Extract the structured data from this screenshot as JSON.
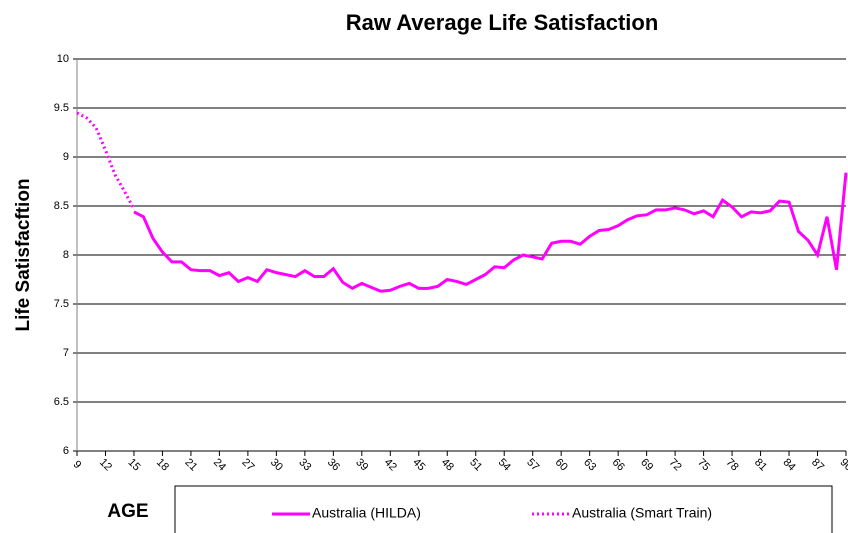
{
  "chart_data": {
    "type": "line",
    "title": "Raw Average Life Satisfaction",
    "xlabel": "AGE",
    "ylabel": "Life Satisfacftion",
    "x": [
      9,
      10,
      11,
      12,
      13,
      14,
      15,
      16,
      17,
      18,
      19,
      20,
      21,
      22,
      23,
      24,
      25,
      26,
      27,
      28,
      29,
      30,
      31,
      32,
      33,
      34,
      35,
      36,
      37,
      38,
      39,
      40,
      41,
      42,
      43,
      44,
      45,
      46,
      47,
      48,
      49,
      50,
      51,
      52,
      53,
      54,
      55,
      56,
      57,
      58,
      59,
      60,
      61,
      62,
      63,
      64,
      65,
      66,
      67,
      68,
      69,
      70,
      71,
      72,
      73,
      74,
      75,
      76,
      77,
      78,
      79,
      80,
      81,
      82,
      83,
      84,
      85,
      86,
      87,
      88,
      89,
      90
    ],
    "series": [
      {
        "name": "Australia (HILDA)",
        "color": "#ff00ff",
        "dash": "solid",
        "values": [
          null,
          null,
          null,
          null,
          null,
          null,
          8.44,
          8.39,
          8.17,
          8.03,
          7.93,
          7.93,
          7.85,
          7.84,
          7.84,
          7.79,
          7.82,
          7.73,
          7.77,
          7.73,
          7.85,
          7.82,
          7.8,
          7.78,
          7.84,
          7.78,
          7.78,
          7.86,
          7.72,
          7.66,
          7.71,
          7.67,
          7.63,
          7.64,
          7.68,
          7.71,
          7.66,
          7.66,
          7.68,
          7.75,
          7.73,
          7.7,
          7.75,
          7.8,
          7.88,
          7.87,
          7.95,
          8.0,
          7.98,
          7.96,
          8.12,
          8.14,
          8.14,
          8.11,
          8.19,
          8.25,
          8.26,
          8.3,
          8.36,
          8.4,
          8.41,
          8.46,
          8.46,
          8.48,
          8.46,
          8.42,
          8.45,
          8.39,
          8.56,
          8.49,
          8.39,
          8.44,
          8.43,
          8.45,
          8.55,
          8.54,
          8.24,
          8.15,
          8.0,
          8.39,
          7.85,
          8.84
        ]
      },
      {
        "name": "Australia (Smart Train)",
        "color": "#ff00ff",
        "dash": "dotted",
        "values": [
          9.45,
          9.4,
          9.3,
          9.07,
          8.82,
          8.65,
          8.47,
          null,
          null,
          null,
          null,
          null,
          null,
          null,
          null,
          null,
          null,
          null,
          null,
          null,
          null,
          null,
          null,
          null,
          null,
          null,
          null,
          null,
          null,
          null,
          null,
          null,
          null,
          null,
          null,
          null,
          null,
          null,
          null,
          null,
          null,
          null,
          null,
          null,
          null,
          null,
          null,
          null,
          null,
          null,
          null,
          null,
          null,
          null,
          null,
          null,
          null,
          null,
          null,
          null,
          null,
          null,
          null,
          null,
          null,
          null,
          null,
          null,
          null,
          null,
          null,
          null,
          null,
          null,
          null,
          null,
          null,
          null,
          null,
          null,
          null,
          null
        ]
      }
    ],
    "xlim": [
      9,
      90
    ],
    "xticks": [
      9,
      12,
      15,
      18,
      21,
      24,
      27,
      30,
      33,
      36,
      39,
      42,
      45,
      48,
      51,
      54,
      57,
      60,
      63,
      66,
      69,
      72,
      75,
      78,
      81,
      84,
      87,
      90
    ],
    "ylim": [
      6,
      10
    ],
    "yticks": [
      6,
      6.5,
      7,
      7.5,
      8,
      8.5,
      9,
      9.5,
      10
    ],
    "grid": true,
    "legend": "bottom"
  }
}
